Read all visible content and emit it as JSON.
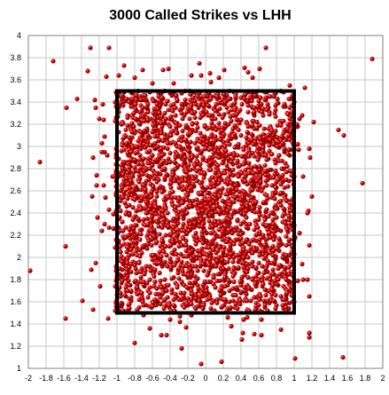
{
  "chart_data": {
    "type": "scatter",
    "title": "3000 Called Strikes vs LHH",
    "xlabel": "",
    "ylabel": "",
    "xlim": [
      -2,
      2
    ],
    "ylim": [
      1,
      4
    ],
    "x_ticks": [
      "-2",
      "-1.8",
      "-1.6",
      "-1.4",
      "-1.2",
      "-1",
      "-0.8",
      "-0.6",
      "-0.4",
      "-0.2",
      "0",
      "0.2",
      "0.4",
      "0.6",
      "0.8",
      "1",
      "1.2",
      "1.4",
      "1.6",
      "1.8",
      "2"
    ],
    "y_ticks": [
      "1",
      "1.2",
      "1.4",
      "1.6",
      "1.8",
      "2",
      "2.2",
      "2.4",
      "2.6",
      "2.8",
      "3",
      "3.2",
      "3.4",
      "3.6",
      "3.8",
      "4"
    ],
    "grid": true,
    "legend": "none",
    "marker_color": "#cc0000",
    "strike_zone": {
      "x": [
        -1,
        1
      ],
      "y": [
        1.5,
        3.5
      ],
      "color": "#000000"
    },
    "series": [
      {
        "n_points": 3000,
        "points": [
          [
            1.88,
            3.79
          ],
          [
            -1.72,
            3.77
          ],
          [
            -1.3,
            3.89
          ],
          [
            -1.09,
            3.89
          ],
          [
            0.68,
            3.89
          ],
          [
            -0.42,
            3.7
          ],
          [
            0.44,
            3.71
          ],
          [
            -0.07,
            3.75
          ],
          [
            0.15,
            3.62
          ],
          [
            -0.98,
            3.64
          ],
          [
            -1.33,
            3.68
          ],
          [
            -1.45,
            3.43
          ],
          [
            1.09,
            3.28
          ],
          [
            1.22,
            3.22
          ],
          [
            1.5,
            3.15
          ],
          [
            1.56,
            3.1
          ],
          [
            -1.57,
            3.35
          ],
          [
            1.17,
            2.98
          ],
          [
            1.18,
            2.9
          ],
          [
            -1.87,
            2.86
          ],
          [
            1.05,
            2.97
          ],
          [
            1.2,
            2.55
          ],
          [
            1.16,
            2.42
          ],
          [
            1.77,
            2.67
          ],
          [
            1.17,
            2.11
          ],
          [
            1.06,
            2.22
          ],
          [
            1.09,
            1.94
          ],
          [
            1.1,
            1.8
          ],
          [
            1.17,
            1.65
          ],
          [
            1.17,
            1.32
          ],
          [
            1.17,
            1.28
          ],
          [
            1.01,
            1.09
          ],
          [
            1.55,
            1.1
          ],
          [
            -1.58,
            1.45
          ],
          [
            -1.98,
            1.88
          ],
          [
            -1.58,
            2.1
          ],
          [
            -1.27,
            1.53
          ],
          [
            -1.39,
            1.61
          ],
          [
            -1.1,
            1.45
          ],
          [
            -0.8,
            1.23
          ],
          [
            -0.5,
            1.3
          ],
          [
            -0.27,
            1.18
          ],
          [
            -0.05,
            1.04
          ],
          [
            0.18,
            1.06
          ],
          [
            0.41,
            1.26
          ],
          [
            0.63,
            1.3
          ],
          [
            0.85,
            1.35
          ],
          [
            0.63,
            1.44
          ],
          [
            0.29,
            1.38
          ],
          [
            -1.19,
            1.74
          ],
          [
            -1.14,
            2.95
          ],
          [
            -1.2,
            3.25
          ],
          [
            -1.16,
            3.38
          ],
          [
            0.95,
            3.55
          ],
          [
            0.06,
            3.58
          ],
          [
            -0.6,
            3.57
          ]
        ]
      }
    ]
  }
}
